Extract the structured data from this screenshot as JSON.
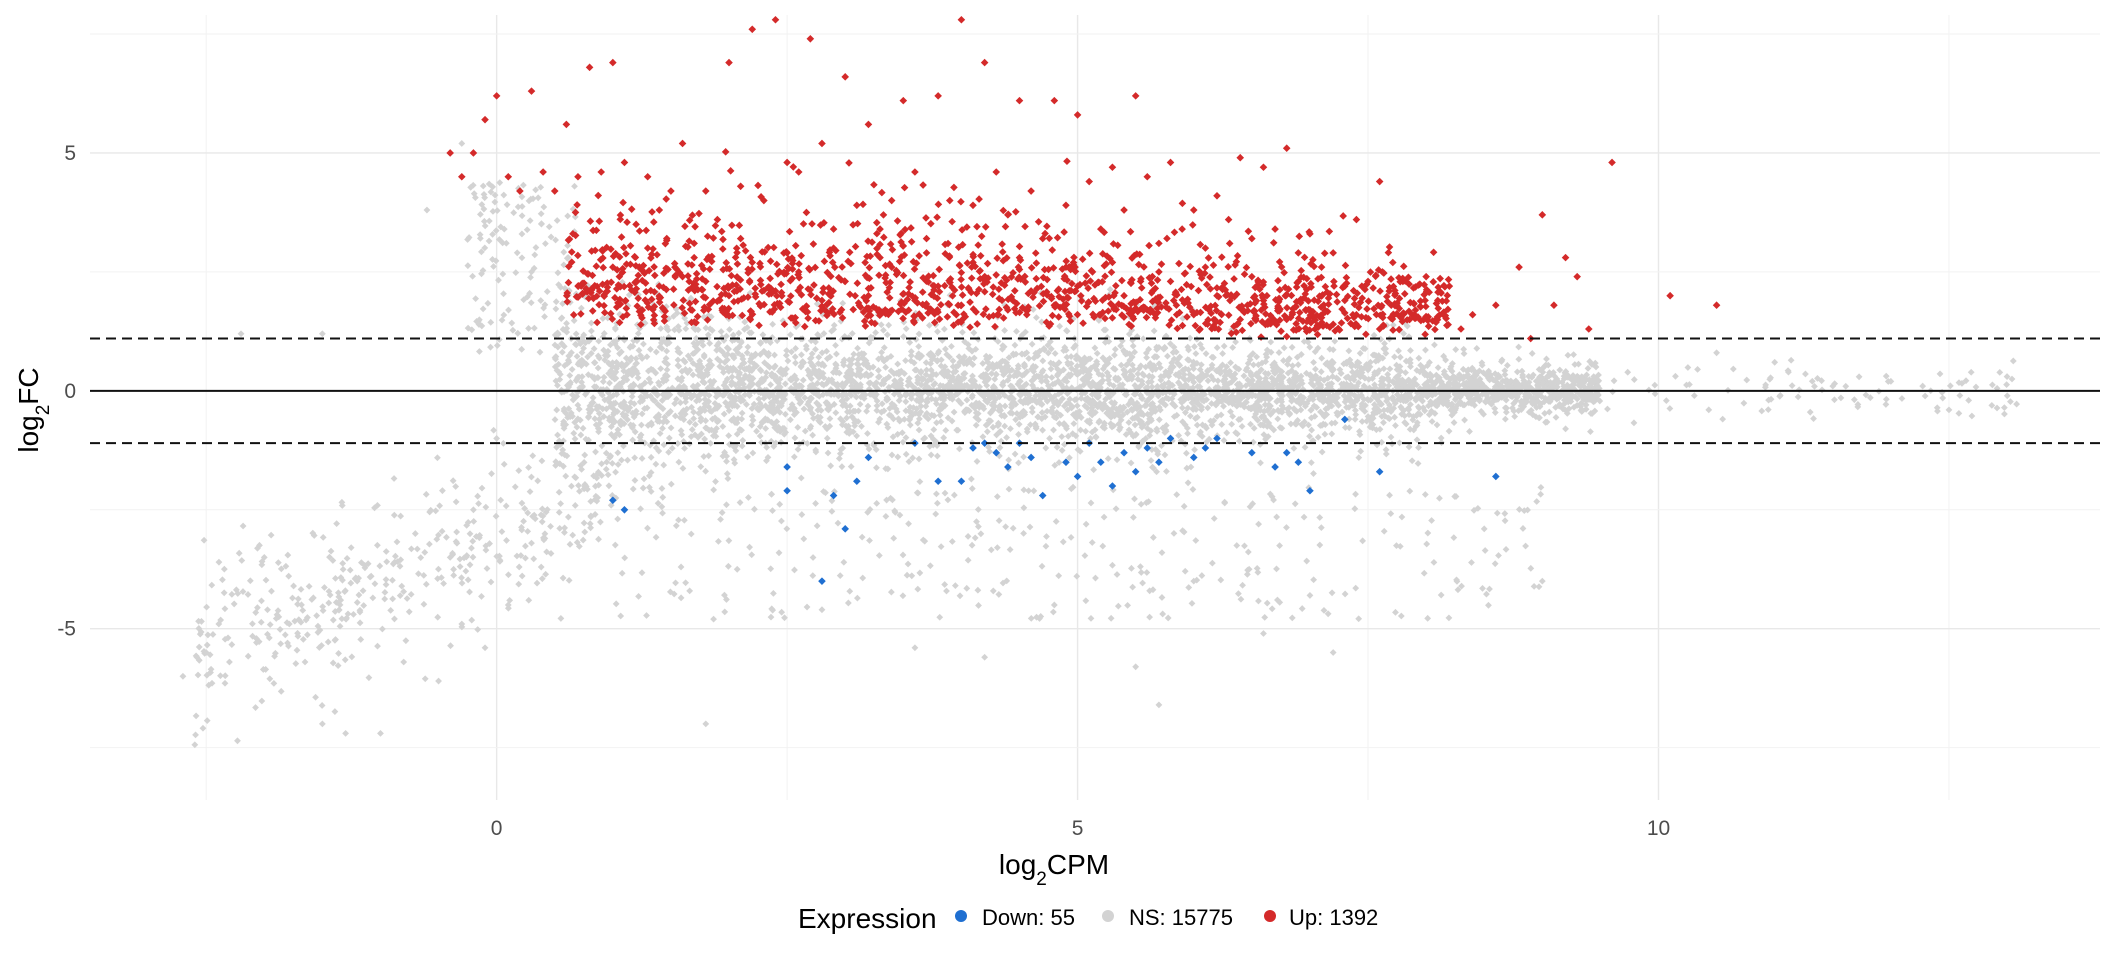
{
  "chart_data": {
    "type": "scatter",
    "title": "",
    "xlabel_main": "log",
    "xlabel_sub": "2",
    "xlabel_suffix": "CPM",
    "ylabel_main": "log",
    "ylabel_sub": "2",
    "ylabel_suffix": "FC",
    "xlim": [
      -3.5,
      13.8
    ],
    "ylim": [
      -8.6,
      7.9
    ],
    "x_ticks": [
      {
        "value": 0,
        "label": "0"
      },
      {
        "value": 5,
        "label": "5"
      },
      {
        "value": 10,
        "label": "10"
      }
    ],
    "y_ticks": [
      {
        "value": -5,
        "label": "-5"
      },
      {
        "value": 0,
        "label": "0"
      },
      {
        "value": 5,
        "label": "5"
      }
    ],
    "minor_x": [
      -2.5,
      2.5,
      7.5,
      12.5
    ],
    "minor_y": [
      -7.5,
      -2.5,
      2.5,
      7.5
    ],
    "hlines": [
      {
        "y": 0,
        "style": "solid"
      },
      {
        "y": 1.1,
        "style": "dashed"
      },
      {
        "y": -1.1,
        "style": "dashed"
      }
    ],
    "legend": {
      "title": "Expression",
      "placement": "bottom",
      "entries": [
        {
          "label": "Down: 55",
          "color": "#1f6fd1"
        },
        {
          "label": "NS: 15775",
          "color": "#d3d3d3"
        },
        {
          "label": "Up: 1392",
          "color": "#d42a2a"
        }
      ]
    },
    "series": [
      {
        "name": "Up",
        "count": 1392,
        "color": "#d42a2a",
        "points": [
          [
            -0.4,
            5.0
          ],
          [
            -0.3,
            4.5
          ],
          [
            -0.2,
            5.0
          ],
          [
            -0.1,
            5.7
          ],
          [
            0.0,
            6.2
          ],
          [
            0.1,
            4.5
          ],
          [
            0.2,
            4.2
          ],
          [
            0.3,
            6.3
          ],
          [
            0.4,
            4.6
          ],
          [
            0.5,
            4.2
          ],
          [
            0.6,
            5.6
          ],
          [
            0.7,
            4.5
          ],
          [
            0.8,
            6.8
          ],
          [
            0.9,
            4.6
          ],
          [
            1.0,
            6.9
          ],
          [
            1.1,
            4.8
          ],
          [
            1.2,
            3.5
          ],
          [
            1.3,
            4.5
          ],
          [
            1.4,
            3.8
          ],
          [
            1.5,
            4.2
          ],
          [
            1.6,
            5.2
          ],
          [
            1.7,
            3.1
          ],
          [
            1.8,
            4.2
          ],
          [
            1.9,
            3.6
          ],
          [
            2.0,
            6.9
          ],
          [
            2.1,
            4.3
          ],
          [
            2.2,
            7.6
          ],
          [
            2.3,
            4.0
          ],
          [
            2.4,
            7.8
          ],
          [
            2.5,
            4.8
          ],
          [
            2.6,
            4.6
          ],
          [
            2.7,
            7.4
          ],
          [
            2.8,
            5.2
          ],
          [
            2.9,
            3.4
          ],
          [
            3.0,
            6.6
          ],
          [
            3.1,
            3.9
          ],
          [
            3.2,
            5.6
          ],
          [
            3.3,
            3.4
          ],
          [
            3.4,
            4.0
          ],
          [
            3.5,
            6.1
          ],
          [
            3.6,
            4.6
          ],
          [
            3.7,
            3.2
          ],
          [
            3.8,
            6.2
          ],
          [
            3.9,
            4.0
          ],
          [
            4.0,
            7.8
          ],
          [
            4.1,
            3.9
          ],
          [
            4.2,
            6.9
          ],
          [
            4.3,
            4.6
          ],
          [
            4.4,
            3.7
          ],
          [
            4.5,
            6.1
          ],
          [
            4.6,
            4.2
          ],
          [
            4.7,
            3.2
          ],
          [
            4.8,
            6.1
          ],
          [
            4.9,
            3.9
          ],
          [
            5.0,
            5.8
          ],
          [
            5.1,
            4.4
          ],
          [
            5.2,
            3.4
          ],
          [
            5.3,
            4.7
          ],
          [
            5.4,
            3.8
          ],
          [
            5.5,
            6.2
          ],
          [
            5.6,
            4.5
          ],
          [
            5.7,
            3.1
          ],
          [
            5.8,
            4.8
          ],
          [
            5.9,
            3.4
          ],
          [
            6.0,
            3.8
          ],
          [
            6.1,
            3.0
          ],
          [
            6.2,
            4.1
          ],
          [
            6.3,
            3.6
          ],
          [
            6.4,
            4.9
          ],
          [
            6.5,
            3.2
          ],
          [
            6.6,
            4.7
          ],
          [
            6.7,
            3.4
          ],
          [
            6.8,
            5.1
          ],
          [
            6.9,
            2.9
          ],
          [
            7.0,
            3.3
          ],
          [
            7.1,
            2.6
          ],
          [
            7.2,
            2.9
          ],
          [
            7.3,
            2.2
          ],
          [
            7.4,
            3.6
          ],
          [
            7.5,
            2.3
          ],
          [
            7.6,
            4.4
          ],
          [
            7.7,
            1.8
          ],
          [
            7.8,
            2.3
          ],
          [
            7.9,
            1.6
          ],
          [
            8.0,
            2.4
          ],
          [
            8.1,
            1.9
          ],
          [
            8.2,
            2.2
          ],
          [
            8.3,
            1.3
          ],
          [
            8.4,
            1.6
          ],
          [
            8.6,
            1.8
          ],
          [
            8.8,
            2.6
          ],
          [
            9.0,
            3.7
          ],
          [
            9.1,
            1.8
          ],
          [
            9.2,
            2.8
          ],
          [
            9.3,
            2.4
          ],
          [
            9.6,
            4.8
          ],
          [
            10.1,
            2.0
          ],
          [
            10.5,
            1.8
          ],
          [
            8.9,
            1.1
          ],
          [
            9.4,
            1.3
          ],
          [
            1.0,
            2.6
          ],
          [
            1.2,
            2.3
          ],
          [
            1.4,
            2.2
          ],
          [
            1.6,
            2.4
          ],
          [
            1.8,
            2.3
          ],
          [
            2.0,
            2.0
          ],
          [
            2.2,
            2.7
          ],
          [
            2.4,
            2.1
          ],
          [
            2.6,
            2.5
          ],
          [
            2.8,
            1.9
          ],
          [
            3.0,
            2.3
          ],
          [
            3.2,
            2.0
          ],
          [
            3.4,
            2.6
          ],
          [
            3.6,
            1.9
          ],
          [
            3.8,
            2.2
          ],
          [
            4.0,
            1.8
          ],
          [
            4.2,
            2.4
          ],
          [
            4.4,
            1.7
          ],
          [
            4.6,
            2.1
          ],
          [
            4.8,
            1.8
          ],
          [
            5.0,
            2.2
          ],
          [
            5.2,
            1.6
          ],
          [
            5.4,
            2.0
          ],
          [
            5.6,
            1.7
          ],
          [
            5.8,
            2.3
          ],
          [
            6.0,
            1.6
          ],
          [
            6.2,
            2.0
          ],
          [
            6.4,
            1.5
          ],
          [
            6.6,
            1.9
          ],
          [
            6.8,
            1.5
          ],
          [
            7.0,
            1.7
          ],
          [
            7.2,
            1.4
          ],
          [
            7.4,
            1.6
          ],
          [
            7.6,
            1.3
          ],
          [
            1.3,
            3.0
          ],
          [
            1.7,
            2.8
          ],
          [
            2.1,
            3.2
          ],
          [
            2.5,
            2.9
          ],
          [
            2.9,
            3.0
          ],
          [
            3.3,
            2.8
          ],
          [
            3.7,
            2.9
          ],
          [
            4.1,
            2.7
          ],
          [
            4.5,
            2.8
          ],
          [
            4.9,
            2.6
          ],
          [
            5.3,
            2.7
          ],
          [
            5.7,
            2.5
          ],
          [
            6.1,
            2.6
          ],
          [
            6.5,
            2.4
          ],
          [
            6.9,
            2.3
          ],
          [
            7.3,
            1.9
          ]
        ]
      },
      {
        "name": "Down",
        "count": 55,
        "color": "#1f6fd1",
        "points": [
          [
            1.0,
            -2.3
          ],
          [
            1.1,
            -2.5
          ],
          [
            2.5,
            -1.6
          ],
          [
            2.5,
            -2.1
          ],
          [
            2.9,
            -2.2
          ],
          [
            3.0,
            -2.9
          ],
          [
            3.2,
            -1.4
          ],
          [
            2.8,
            -4.0
          ],
          [
            3.1,
            -1.9
          ],
          [
            3.8,
            -1.9
          ],
          [
            4.0,
            -1.9
          ],
          [
            4.2,
            -1.1
          ],
          [
            4.3,
            -1.3
          ],
          [
            4.4,
            -1.6
          ],
          [
            4.5,
            -1.1
          ],
          [
            4.6,
            -1.4
          ],
          [
            4.7,
            -2.2
          ],
          [
            4.9,
            -1.5
          ],
          [
            5.0,
            -1.8
          ],
          [
            5.2,
            -1.5
          ],
          [
            5.3,
            -2.0
          ],
          [
            5.4,
            -1.3
          ],
          [
            5.5,
            -1.7
          ],
          [
            5.6,
            -1.2
          ],
          [
            5.7,
            -1.5
          ],
          [
            5.8,
            -1.0
          ],
          [
            6.0,
            -1.4
          ],
          [
            6.2,
            -1.0
          ],
          [
            6.5,
            -1.3
          ],
          [
            6.7,
            -1.6
          ],
          [
            6.9,
            -1.5
          ],
          [
            7.0,
            -2.1
          ],
          [
            7.3,
            -0.6
          ],
          [
            7.6,
            -1.7
          ],
          [
            8.6,
            -1.8
          ],
          [
            3.6,
            -1.1
          ],
          [
            4.1,
            -1.2
          ],
          [
            5.1,
            -1.1
          ],
          [
            6.1,
            -1.2
          ],
          [
            6.8,
            -1.3
          ]
        ]
      },
      {
        "name": "NS",
        "count": 15775,
        "color": "#d3d3d3",
        "generated": true,
        "points": [
          [
            -2.7,
            -6.0
          ],
          [
            -2.5,
            -5.5
          ],
          [
            -2.3,
            -5.7
          ],
          [
            -1.8,
            -5.3
          ],
          [
            -1.5,
            -7.0
          ],
          [
            -1.3,
            -7.2
          ],
          [
            -1.0,
            -7.2
          ],
          [
            -0.8,
            -5.7
          ],
          [
            -0.5,
            -6.1
          ],
          [
            -0.3,
            -4.9
          ],
          [
            -0.1,
            -5.4
          ],
          [
            0.1,
            -4.5
          ],
          [
            -0.4,
            -3.5
          ],
          [
            -0.7,
            -3.0
          ],
          [
            -1.2,
            -4.0
          ],
          [
            -2.0,
            -3.5
          ],
          [
            -0.2,
            -2.5
          ],
          [
            0.3,
            -3.2
          ],
          [
            0.0,
            -1.0
          ],
          [
            -1.5,
            1.2
          ],
          [
            -2.2,
            1.2
          ],
          [
            -0.6,
            3.8
          ],
          [
            -0.3,
            5.2
          ],
          [
            0.3,
            2.5
          ],
          [
            1.8,
            -7.0
          ],
          [
            5.5,
            -5.8
          ],
          [
            6.6,
            -5.1
          ],
          [
            7.2,
            -5.5
          ],
          [
            8.5,
            -2.9
          ],
          [
            9.0,
            -4.0
          ],
          [
            10.5,
            0.8
          ],
          [
            11.0,
            0.6
          ],
          [
            12.0,
            0.2
          ],
          [
            13.0,
            0.3
          ],
          [
            12.5,
            -0.4
          ],
          [
            11.5,
            0.1
          ],
          [
            2.8,
            -4.6
          ],
          [
            4.2,
            -5.6
          ],
          [
            3.6,
            -5.4
          ],
          [
            5.7,
            -6.6
          ],
          [
            4.8,
            -4.5
          ],
          [
            6.0,
            -4.0
          ],
          [
            7.0,
            -4.3
          ]
        ]
      }
    ]
  }
}
